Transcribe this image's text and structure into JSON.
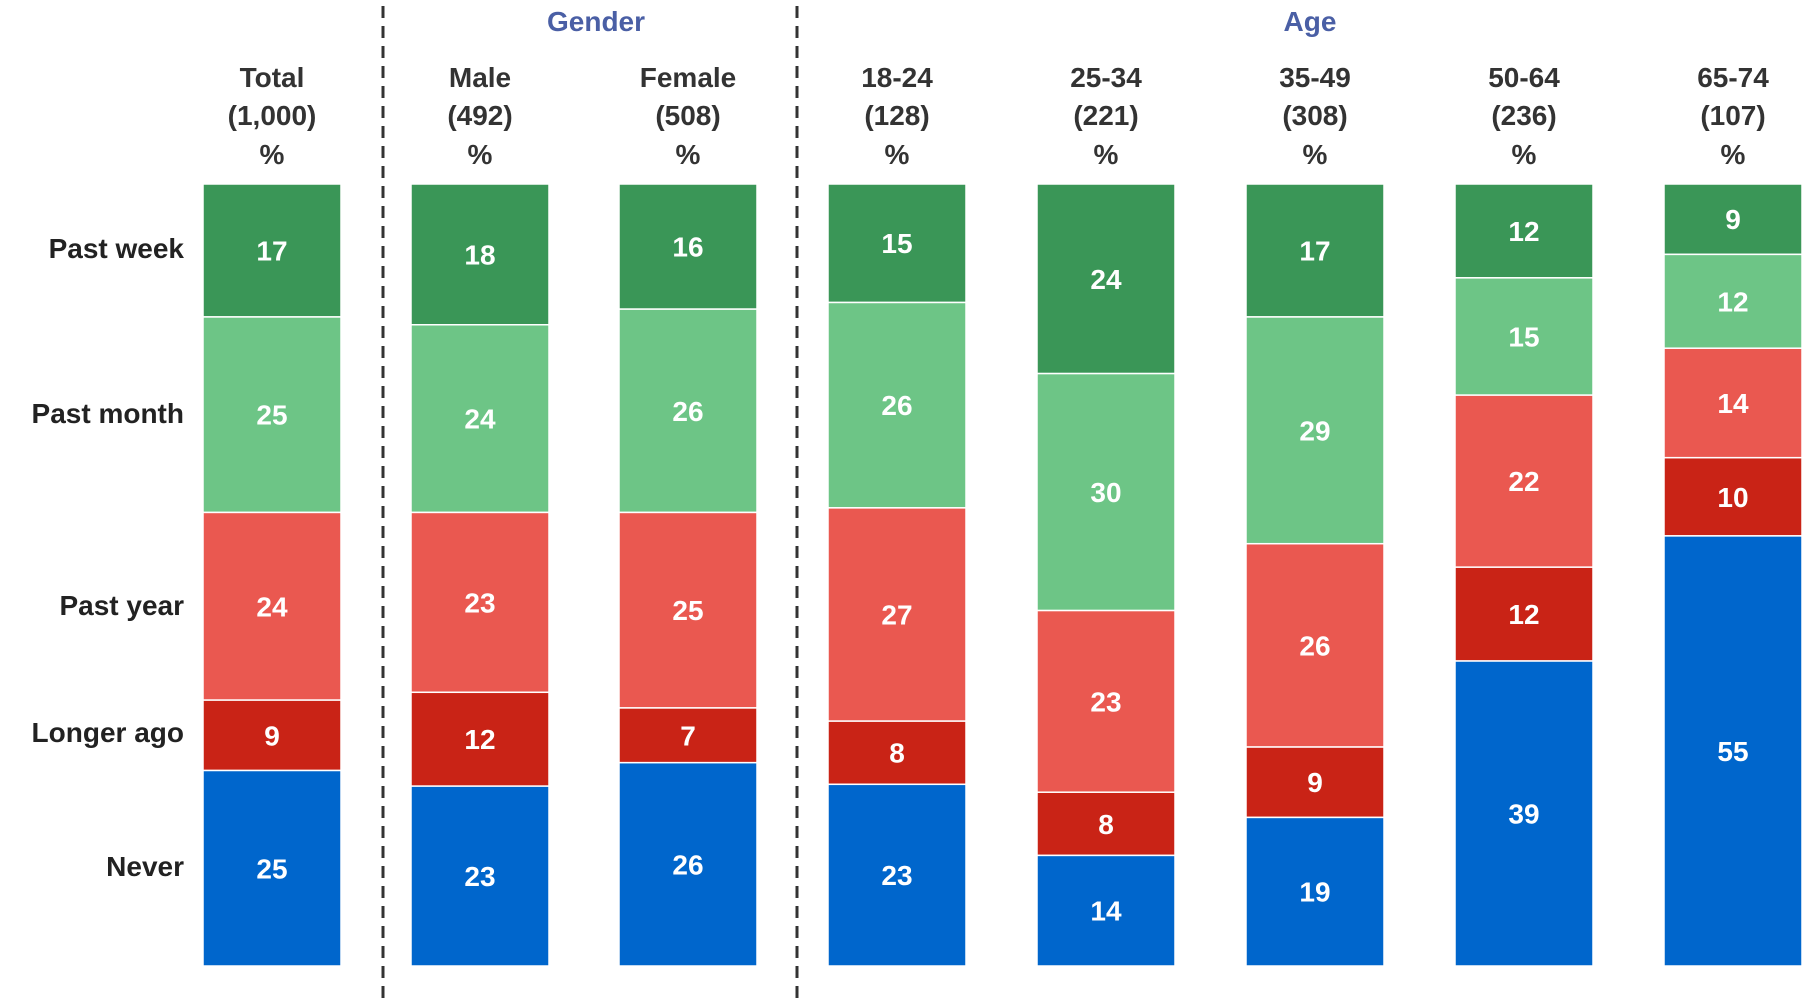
{
  "chart_data": {
    "type": "bar",
    "stacked": true,
    "orientation": "vertical",
    "groups": [
      {
        "label": "Gender",
        "columns": [
          1,
          2
        ]
      },
      {
        "label": "Age",
        "columns": [
          3,
          4,
          5,
          6,
          7,
          8
        ]
      }
    ],
    "categories": [
      {
        "name": "Total",
        "base": "(1,000)",
        "unit": "%"
      },
      {
        "name": "Male",
        "base": "(492)",
        "unit": "%"
      },
      {
        "name": "Female",
        "base": "(508)",
        "unit": "%"
      },
      {
        "name": "18-24",
        "base": "(128)",
        "unit": "%"
      },
      {
        "name": "25-34",
        "base": "(221)",
        "unit": "%"
      },
      {
        "name": "35-49",
        "base": "(308)",
        "unit": "%"
      },
      {
        "name": "50-64",
        "base": "(236)",
        "unit": "%"
      },
      {
        "name": "65-74",
        "base": "(107)",
        "unit": "%"
      }
    ],
    "series": [
      {
        "name": "Past week",
        "color": "#3a9657",
        "values": [
          17,
          18,
          16,
          15,
          24,
          17,
          12,
          9
        ]
      },
      {
        "name": "Past month",
        "color": "#6dc586",
        "values": [
          25,
          24,
          26,
          26,
          30,
          29,
          15,
          12
        ]
      },
      {
        "name": "Past year",
        "color": "#ea5850",
        "values": [
          24,
          23,
          25,
          27,
          23,
          26,
          22,
          14
        ]
      },
      {
        "name": "Longer ago",
        "color": "#c92316",
        "values": [
          9,
          12,
          7,
          8,
          8,
          9,
          12,
          10
        ]
      },
      {
        "name": "Never",
        "color": "#0066cc",
        "values": [
          25,
          23,
          26,
          23,
          14,
          19,
          39,
          55
        ]
      }
    ],
    "ylim": [
      0,
      100
    ],
    "legend": "row labels at left",
    "grid": false
  }
}
